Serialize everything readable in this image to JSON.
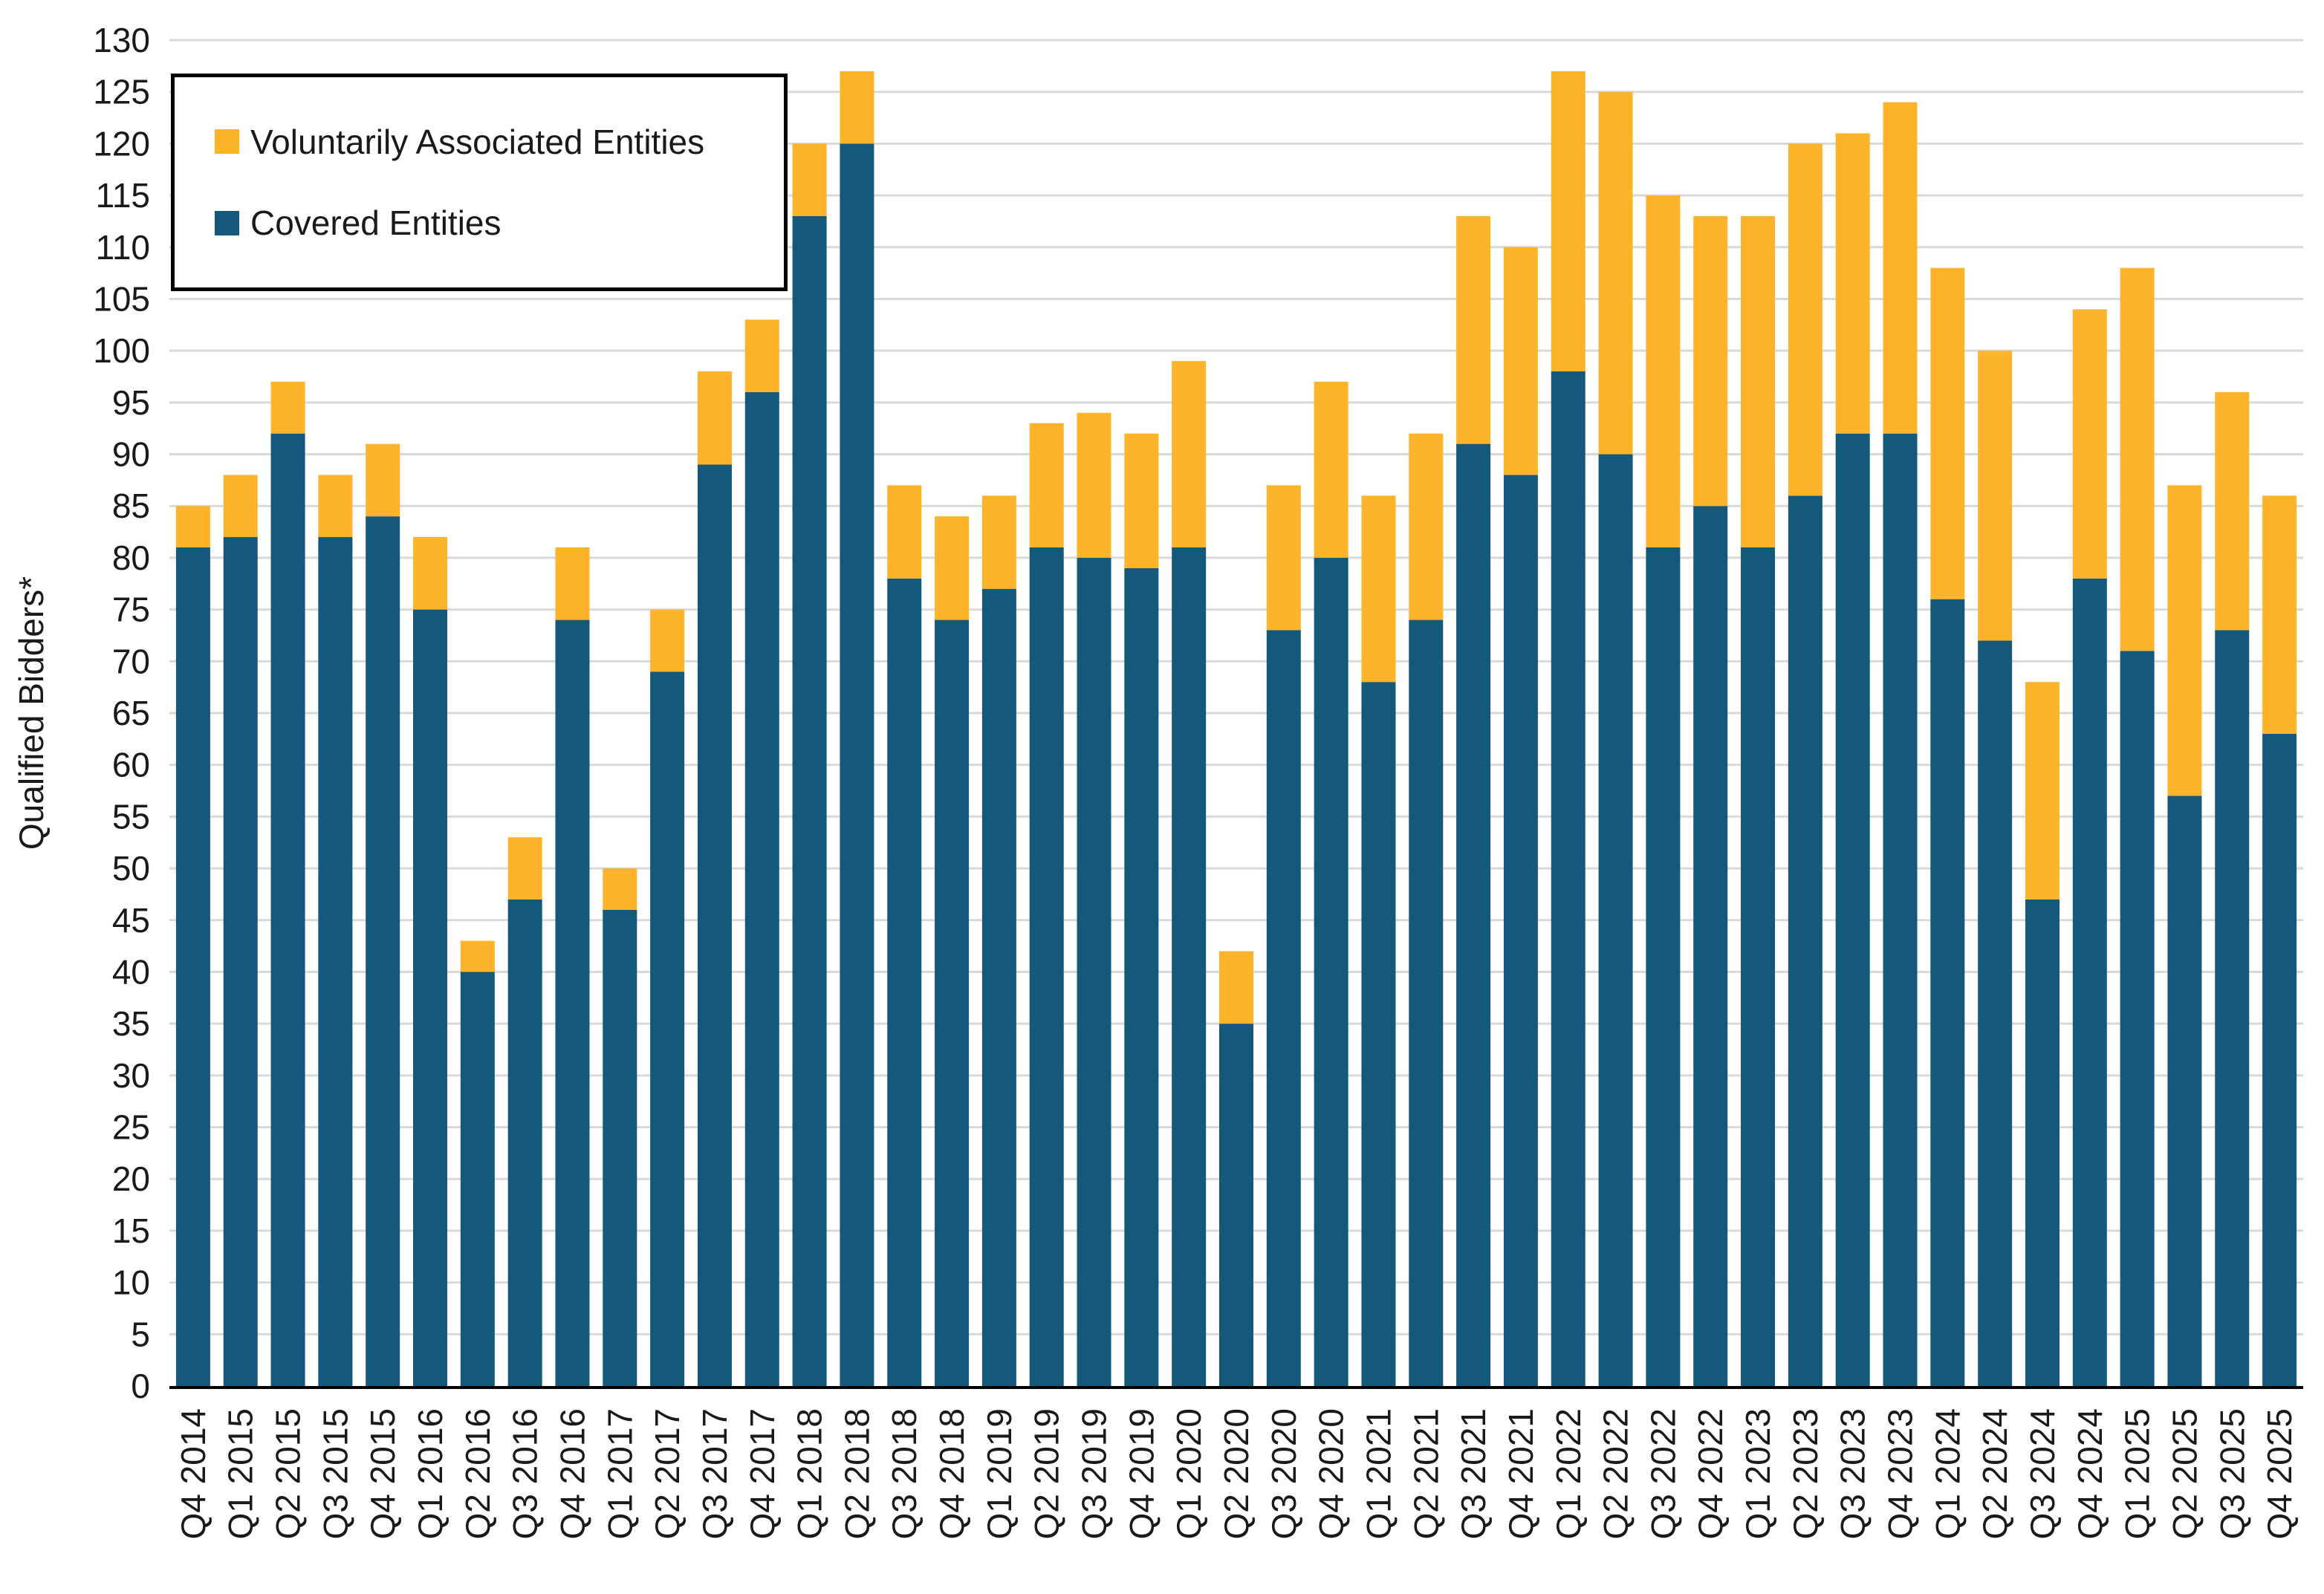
{
  "colors": {
    "background": "#FFFFFF",
    "grid": "#D9D9D9",
    "axis": "#000000",
    "text": "#1A1A1A"
  },
  "chart_data": {
    "type": "bar",
    "stacked": true,
    "title": "",
    "xlabel": "",
    "ylabel": "Qualified Bidders*",
    "ylim": [
      0,
      130
    ],
    "ytick_step": 5,
    "grid": true,
    "legend_position": "top-left",
    "categories": [
      "Q4 2014",
      "Q1 2015",
      "Q2 2015",
      "Q3 2015",
      "Q4 2015",
      "Q1 2016",
      "Q2 2016",
      "Q3 2016",
      "Q4 2016",
      "Q1 2017",
      "Q2 2017",
      "Q3 2017",
      "Q4 2017",
      "Q1 2018",
      "Q2 2018",
      "Q3 2018",
      "Q4 2018",
      "Q1 2019",
      "Q2 2019",
      "Q3 2019",
      "Q4 2019",
      "Q1 2020",
      "Q2 2020",
      "Q3 2020",
      "Q4 2020",
      "Q1 2021",
      "Q2 2021",
      "Q3 2021",
      "Q4 2021",
      "Q1 2022",
      "Q2 2022",
      "Q3 2022",
      "Q4 2022",
      "Q1 2023",
      "Q2 2023",
      "Q3 2023",
      "Q4 2023",
      "Q1 2024",
      "Q2 2024",
      "Q3 2024",
      "Q4 2024",
      "Q1 2025",
      "Q2 2025",
      "Q3 2025",
      "Q4 2025"
    ],
    "series": [
      {
        "name": "Covered Entities",
        "color": "#14587B",
        "values": [
          81,
          82,
          92,
          82,
          84,
          75,
          40,
          47,
          74,
          46,
          69,
          89,
          96,
          113,
          120,
          78,
          74,
          77,
          81,
          80,
          79,
          81,
          35,
          73,
          80,
          68,
          74,
          91,
          88,
          98,
          90,
          81,
          85,
          81,
          86,
          92,
          92,
          76,
          72,
          47,
          78,
          71,
          57,
          73,
          63
        ]
      },
      {
        "name": "Voluntarily Associated Entities",
        "color": "#FDB32A",
        "values": [
          4,
          6,
          5,
          6,
          7,
          7,
          3,
          6,
          7,
          4,
          6,
          9,
          7,
          7,
          7,
          9,
          10,
          9,
          12,
          14,
          13,
          18,
          7,
          14,
          17,
          18,
          18,
          22,
          22,
          29,
          35,
          34,
          28,
          32,
          34,
          29,
          32,
          32,
          28,
          21,
          26,
          37,
          30,
          23,
          23
        ]
      }
    ]
  }
}
